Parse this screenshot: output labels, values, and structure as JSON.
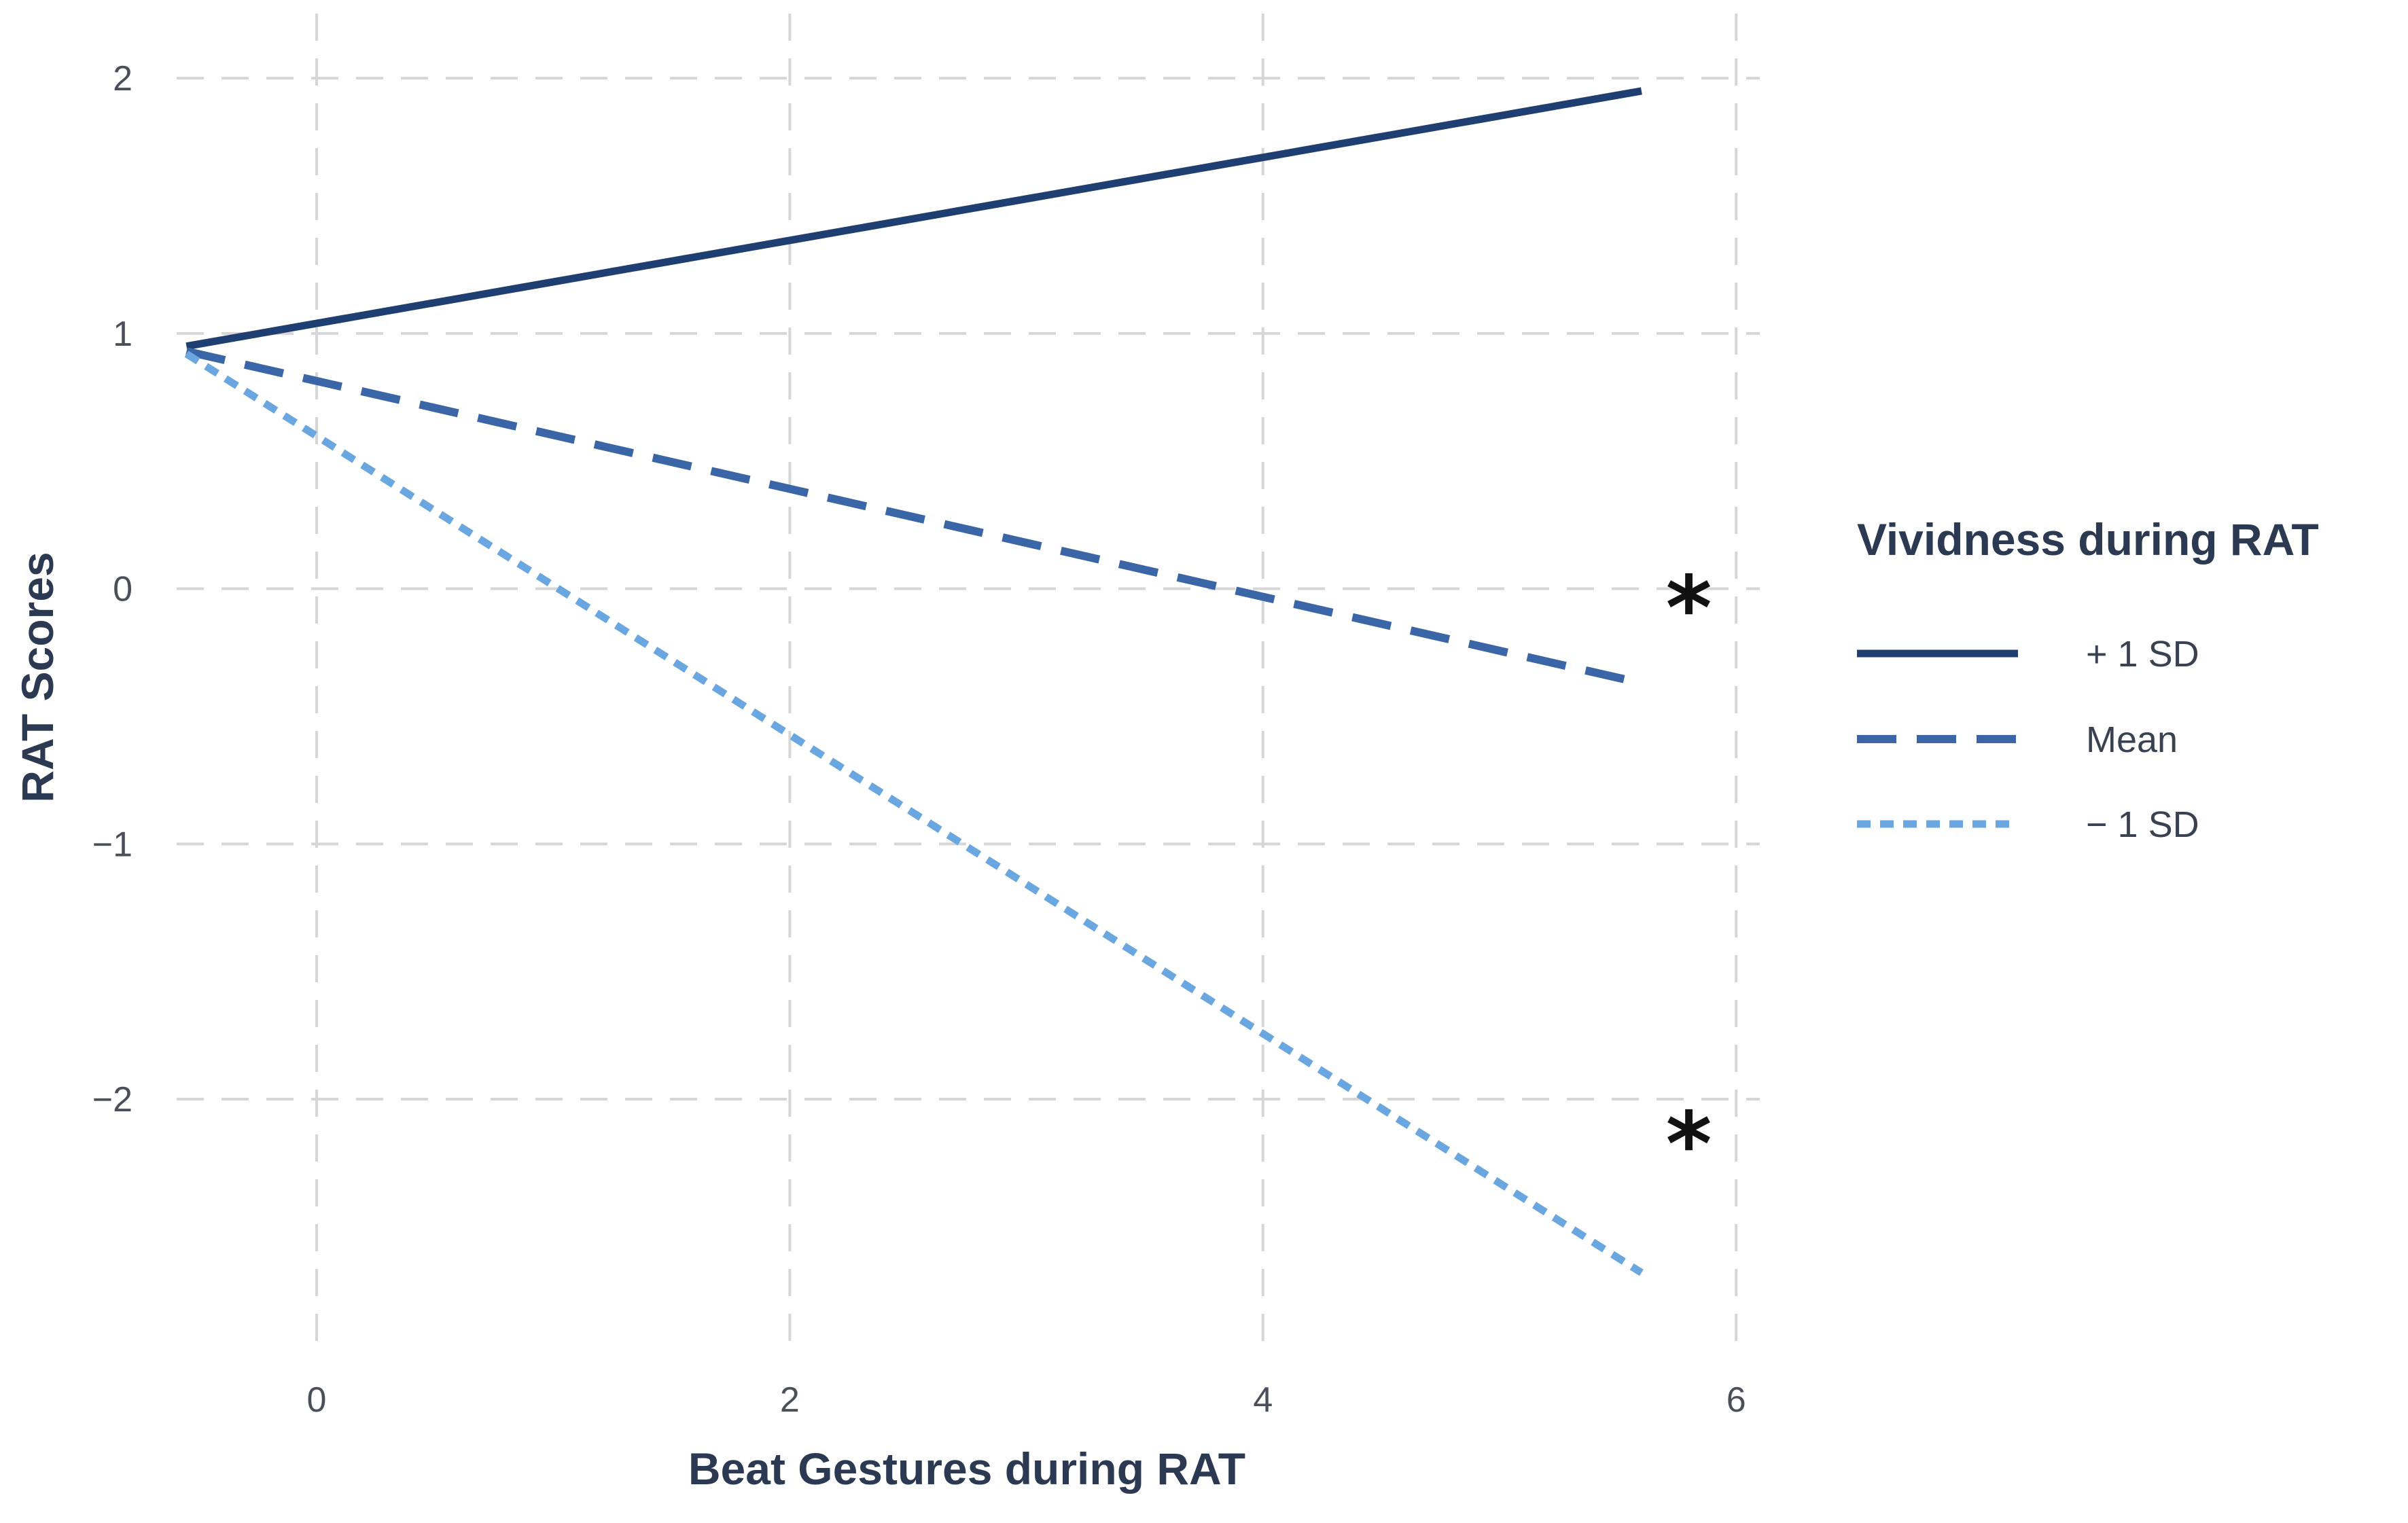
{
  "chart_data": {
    "type": "line",
    "xlabel": "Beat Gestures during RAT",
    "ylabel": "RAT Scores",
    "xlim": [
      -0.85,
      6.1
    ],
    "ylim": [
      -2.95,
      2.2
    ],
    "x_ticks": [
      0,
      2,
      4,
      6
    ],
    "y_ticks": [
      2,
      1,
      0,
      -1,
      -2
    ],
    "x_tick_labels": [
      "0",
      "2",
      "4",
      "6"
    ],
    "y_tick_labels": [
      "2",
      "1",
      "0",
      "−1",
      "−2"
    ],
    "grid": true,
    "legend": {
      "title": "Vividness during RAT",
      "position": "right"
    },
    "series": [
      {
        "name": "+ 1 SD",
        "x": [
          -0.55,
          5.6
        ],
        "values": [
          0.95,
          1.95
        ],
        "color": "#1f3f73",
        "style": "solid"
      },
      {
        "name": "Mean",
        "x": [
          -0.55,
          5.6
        ],
        "values": [
          0.93,
          -0.37
        ],
        "color": "#3a66a7",
        "style": "dashed"
      },
      {
        "name": "− 1 SD",
        "x": [
          -0.55,
          5.6
        ],
        "values": [
          0.92,
          -2.68
        ],
        "color": "#6aa6df",
        "style": "dotted"
      }
    ],
    "annotations": [
      {
        "text": "*",
        "x": 5.8,
        "y": -0.05
      },
      {
        "text": "*",
        "x": 5.8,
        "y": -2.15
      }
    ]
  }
}
